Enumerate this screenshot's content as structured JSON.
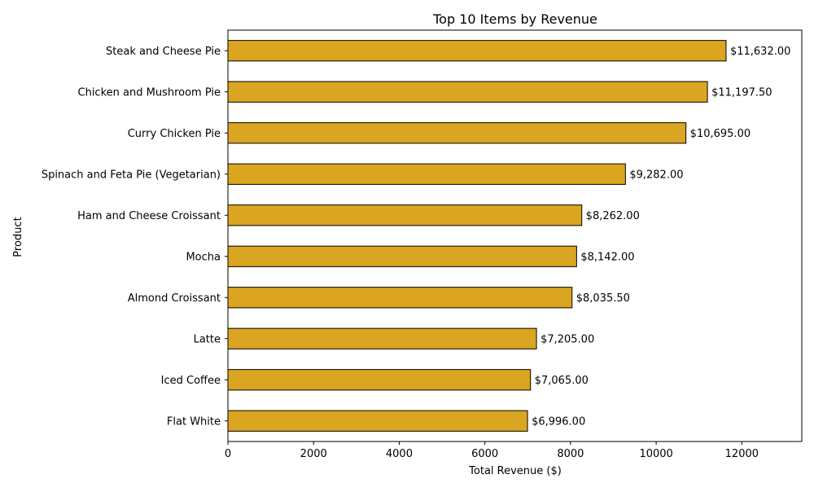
{
  "chart_data": {
    "type": "bar",
    "orientation": "horizontal",
    "title": "Top 10 Items by Revenue",
    "xlabel": "Total Revenue ($)",
    "ylabel": "Product",
    "categories": [
      "Steak and Cheese Pie",
      "Chicken and Mushroom Pie",
      "Curry Chicken Pie",
      "Spinach and Feta Pie (Vegetarian)",
      "Ham and Cheese Croissant",
      "Mocha",
      "Almond Croissant",
      "Latte",
      "Iced Coffee",
      "Flat White"
    ],
    "values": [
      11632,
      11197.5,
      10695,
      9282,
      8262,
      8142,
      8035.5,
      7205,
      7065,
      6996
    ],
    "value_labels": [
      "$11,632.00",
      "$11,197.50",
      "$10,695.00",
      "$9,282.00",
      "$8,262.00",
      "$8,142.00",
      "$8,035.50",
      "$7,205.00",
      "$7,065.00",
      "$6,996.00"
    ],
    "xlim": [
      0,
      13400
    ],
    "xticks": [
      0,
      2000,
      4000,
      6000,
      8000,
      10000,
      12000
    ],
    "xtick_labels": [
      "0",
      "2000",
      "4000",
      "6000",
      "8000",
      "10000",
      "12000"
    ],
    "grid": false,
    "legend": "none",
    "bar_color": "#DAA520",
    "bar_edge_color": "#000000"
  }
}
